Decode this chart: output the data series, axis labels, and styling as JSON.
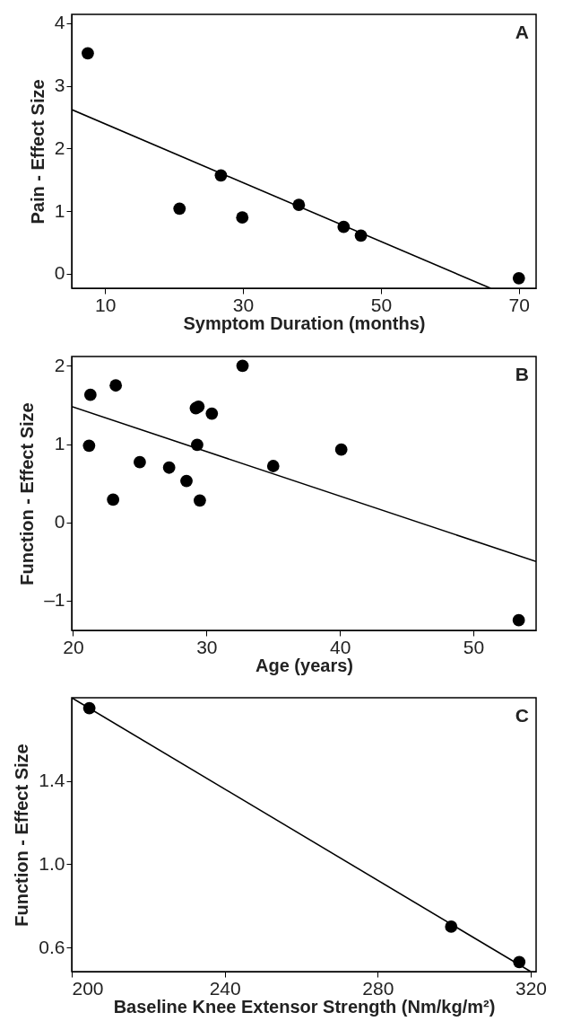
{
  "chart_data": [
    {
      "type": "scatter",
      "xlabel": "Symptom Duration (months)",
      "ylabel": "Pain - Effect Size",
      "annotations": [
        "A"
      ],
      "grid": false,
      "xlim": [
        5.17,
        72.5
      ],
      "ylim": [
        -0.23,
        4.14
      ],
      "xticks": [
        10,
        30,
        50,
        70
      ],
      "yticks": [
        0,
        1,
        2,
        3,
        4
      ],
      "series": [
        {
          "marker": "circle",
          "color": "#000000",
          "x": [
            7.5,
            20.8,
            26.8,
            29.9,
            38.1,
            44.6,
            47.1,
            70
          ],
          "values": [
            3.52,
            1.04,
            1.57,
            0.9,
            1.1,
            0.75,
            0.61,
            -0.07
          ]
        },
        {
          "type": "line",
          "color": "#000000",
          "x": [
            5.17,
            65.9
          ],
          "values": [
            2.62,
            -0.23
          ]
        }
      ]
    },
    {
      "type": "scatter",
      "xlabel": "Age (years)",
      "ylabel": "Function - Effect Size",
      "annotations": [
        "B"
      ],
      "grid": false,
      "xlim": [
        19.9,
        54.7
      ],
      "ylim": [
        -1.38,
        2.12
      ],
      "xticks": [
        20,
        30,
        40,
        50
      ],
      "yticks": [
        {
          "value": -1,
          "label": "–1"
        },
        0,
        1,
        2
      ],
      "series": [
        {
          "marker": "circle",
          "color": "#000000",
          "x": [
            21.3,
            23.2,
            21.2,
            23.0,
            25.0,
            27.2,
            28.5,
            29.2,
            29.4,
            29.3,
            29.5,
            30.4,
            32.7,
            35.0,
            40.1,
            53.4
          ],
          "values": [
            1.63,
            1.75,
            0.98,
            0.29,
            0.77,
            0.7,
            0.53,
            1.46,
            1.48,
            0.99,
            0.28,
            1.39,
            2.0,
            0.72,
            0.93,
            -1.25
          ]
        },
        {
          "type": "line",
          "color": "#000000",
          "x": [
            19.9,
            54.7
          ],
          "values": [
            1.48,
            -0.5
          ]
        }
      ]
    },
    {
      "type": "scatter",
      "xlabel": "Baseline Knee Extensor Strength (Nm/kg/m²)",
      "ylabel": "Function - Effect Size",
      "annotations": [
        "C"
      ],
      "grid": false,
      "xlim": [
        200,
        321.4
      ],
      "ylim": [
        0.484,
        1.8
      ],
      "xticks": [
        200,
        240,
        280,
        320
      ],
      "yticks": [
        0.6,
        {
          "value": 1.0,
          "label": "1.0"
        },
        1.4
      ],
      "series": [
        {
          "marker": "circle",
          "color": "#000000",
          "x": [
            204.6,
            299.2,
            317.0
          ],
          "values": [
            1.75,
            0.7,
            0.53
          ]
        },
        {
          "type": "line",
          "color": "#000000",
          "x": [
            200,
            320
          ],
          "values": [
            1.8,
            0.484
          ]
        }
      ]
    }
  ]
}
